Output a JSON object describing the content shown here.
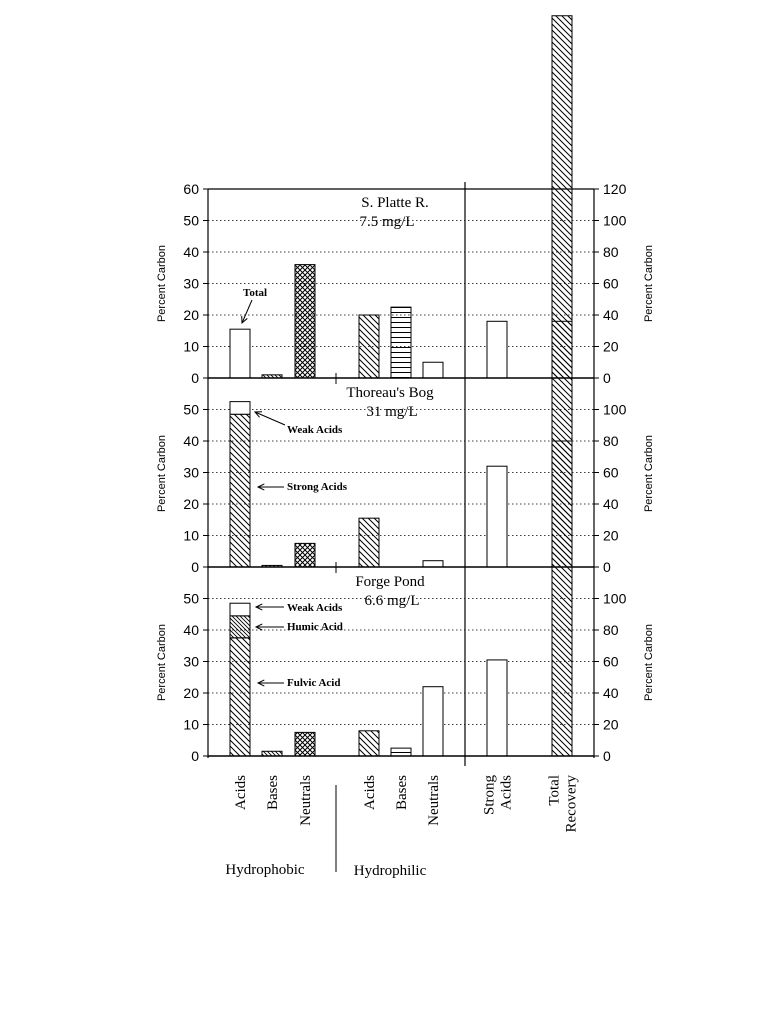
{
  "chart_data": {
    "type": "bar",
    "categories": [
      "Acids",
      "Bases",
      "Neutrals",
      "Acids",
      "Bases",
      "Neutrals",
      "Strong Acids",
      "Total Recovery"
    ],
    "groups": [
      "Hydrophobic",
      "Hydrophilic"
    ],
    "ylabel": "Percent Carbon",
    "grid": "horizontal dotted",
    "panels": [
      {
        "title": "S. Platte R.",
        "subtitle": "7.5 mg/L",
        "left_ylim": [
          0,
          60
        ],
        "left_ticks": [
          "0",
          "10",
          "20",
          "30",
          "40",
          "50",
          "60"
        ],
        "right_ylim": [
          0,
          120
        ],
        "right_ticks": [
          "0",
          "20",
          "40",
          "60",
          "80",
          "100",
          "120"
        ],
        "values": [
          15.5,
          1,
          36,
          20,
          22.5,
          5,
          18,
          115
        ],
        "annotations": [
          {
            "text": "Total"
          }
        ]
      },
      {
        "title": "Thoreau's Bog",
        "subtitle": "31 mg/L",
        "left_ylim": [
          0,
          55
        ],
        "left_ticks": [
          "0",
          "10",
          "20",
          "30",
          "40",
          "50"
        ],
        "right_ylim": [
          0,
          110
        ],
        "right_ticks": [
          "0",
          "20",
          "40",
          "60",
          "80",
          "100"
        ],
        "values": [
          52.5,
          0.5,
          7.5,
          15.5,
          0,
          2,
          32,
          78
        ],
        "stacked_first_bar": [
          {
            "name": "Strong Acids",
            "value": 48.5
          },
          {
            "name": "Weak Acids",
            "value": 4
          }
        ],
        "annotations": [
          {
            "text": "Weak Acids"
          },
          {
            "text": "Strong Acids"
          }
        ]
      },
      {
        "title": "Forge Pond",
        "subtitle": "6.6 mg/L",
        "left_ylim": [
          0,
          55
        ],
        "left_ticks": [
          "0",
          "10",
          "20",
          "30",
          "40",
          "50"
        ],
        "right_ylim": [
          0,
          110
        ],
        "right_ticks": [
          "0",
          "20",
          "40",
          "60",
          "80",
          "100"
        ],
        "values": [
          48.5,
          1.5,
          7.5,
          8,
          2.5,
          22,
          30.5,
          100
        ],
        "stacked_first_bar": [
          {
            "name": "Fulvic Acid",
            "value": 37.5
          },
          {
            "name": "Humic Acid",
            "value": 7
          },
          {
            "name": "Weak Acids",
            "value": 4
          }
        ],
        "annotations": [
          {
            "text": "Weak Acids"
          },
          {
            "text": "Humic Acid"
          },
          {
            "text": "Fulvic Acid"
          }
        ]
      }
    ],
    "x_category_labels": [
      [
        "Acids"
      ],
      [
        "Bases"
      ],
      [
        "Neutrals"
      ],
      [
        "Acids"
      ],
      [
        "Bases"
      ],
      [
        "Neutrals"
      ],
      [
        "Strong",
        "Acids"
      ],
      [
        "Total",
        "Recovery"
      ]
    ]
  }
}
